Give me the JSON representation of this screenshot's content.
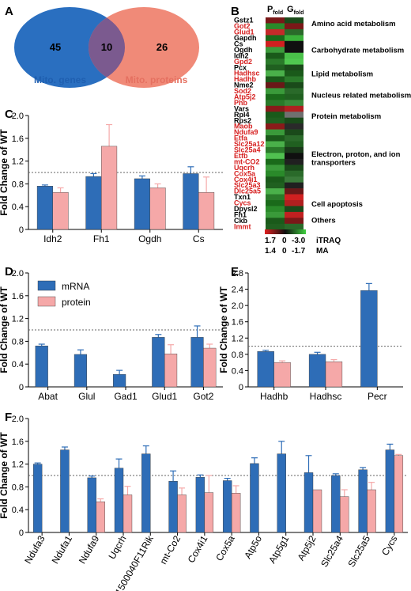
{
  "colors": {
    "mrna": "#2e6db7",
    "protein": "#f5a8a8",
    "venn_left": "#2a6fc0",
    "venn_right": "#f08a78",
    "venn_overlap": "#7b5a8f",
    "red_gene": "#d62020"
  },
  "panels": {
    "A": {
      "label": "A",
      "left_count": "45",
      "overlap_count": "10",
      "right_count": "26",
      "left_label": "Mito. genes",
      "right_label": "Mito. proteins"
    },
    "B": {
      "label": "B",
      "header_p": "P",
      "header_p_sub": "fold",
      "header_g": "G",
      "header_g_sub": "fold",
      "genes": [
        {
          "name": "Gstz1",
          "red": false,
          "p": "#7a1818",
          "g": "#1a4a1a"
        },
        {
          "name": "Got2",
          "red": true,
          "p": "#2a8a2a",
          "g": "#7a1818"
        },
        {
          "name": "Glud1",
          "red": true,
          "p": "#c42a2a",
          "g": "#2a6a2a"
        },
        {
          "name": "Gapdh",
          "red": false,
          "p": "#1a6a1a",
          "g": "#3ab03a"
        },
        {
          "name": "Cs",
          "red": false,
          "p": "#d02020",
          "g": "#101010"
        },
        {
          "name": "Ogdh",
          "red": false,
          "p": "#3a9a3a",
          "g": "#101010"
        },
        {
          "name": "Idh2",
          "red": false,
          "p": "#1a5a1a",
          "g": "#4ac04a"
        },
        {
          "name": "Gpd2",
          "red": true,
          "p": "#2a7a2a",
          "g": "#50c850"
        },
        {
          "name": "Pcx",
          "red": false,
          "p": "#206020",
          "g": "#1a4a1a"
        },
        {
          "name": "Hadhsc",
          "red": true,
          "p": "#4ab04a",
          "g": "#1a5a1a"
        },
        {
          "name": "Hadhb",
          "red": true,
          "p": "#1a5a1a",
          "g": "#2a7a2a"
        },
        {
          "name": "Nme2",
          "red": false,
          "p": "#6a1818",
          "g": "#1a4a1a"
        },
        {
          "name": "Sod2",
          "red": true,
          "p": "#3a9a3a",
          "g": "#2a6a2a"
        },
        {
          "name": "Atp5j2",
          "red": true,
          "p": "#1a6a1a",
          "g": "#206020"
        },
        {
          "name": "Phb",
          "red": true,
          "p": "#2a7a2a",
          "g": "#3a8a3a"
        },
        {
          "name": "Vars",
          "red": false,
          "p": "#8a1a1a",
          "g": "#b02020"
        },
        {
          "name": "Rpl4",
          "red": false,
          "p": "#1a5a1a",
          "g": "#707070"
        },
        {
          "name": "Rps2",
          "red": false,
          "p": "#206020",
          "g": "#1a4a1a"
        },
        {
          "name": "Maob",
          "red": true,
          "p": "#8a1a1a",
          "g": "#2a2a2a"
        },
        {
          "name": "Ndufa9",
          "red": true,
          "p": "#3a9a3a",
          "g": "#1a4a1a"
        },
        {
          "name": "Etfa",
          "red": true,
          "p": "#1a5a1a",
          "g": "#2a6a2a"
        },
        {
          "name": "Slc25a12",
          "red": true,
          "p": "#4ab04a",
          "g": "#206020"
        },
        {
          "name": "Slc25a4",
          "red": true,
          "p": "#2a7a2a",
          "g": "#1a3a1a"
        },
        {
          "name": "Etfb",
          "red": true,
          "p": "#50c050",
          "g": "#101010"
        },
        {
          "name": "mt-CO2",
          "red": true,
          "p": "#1a6a1a",
          "g": "#202020"
        },
        {
          "name": "Uqcrh",
          "red": true,
          "p": "#3a9a3a",
          "g": "#1a4a1a"
        },
        {
          "name": "Cox5a",
          "red": true,
          "p": "#2a8a2a",
          "g": "#2a6a2a"
        },
        {
          "name": "Cox4i1",
          "red": true,
          "p": "#1a5a1a",
          "g": "#3a7a3a"
        },
        {
          "name": "Slc25a3",
          "red": true,
          "p": "#206020",
          "g": "#202020"
        },
        {
          "name": "Dlc25a5",
          "red": true,
          "p": "#4ab04a",
          "g": "#6a1818"
        },
        {
          "name": "Txn1",
          "red": false,
          "p": "#2a7a2a",
          "g": "#d02020"
        },
        {
          "name": "Cycs",
          "red": true,
          "p": "#1a6a1a",
          "g": "#b02020"
        },
        {
          "name": "Dpysl2",
          "red": false,
          "p": "#2a8a2a",
          "g": "#1a4a1a"
        },
        {
          "name": "Fh1",
          "red": false,
          "p": "#3a9a3a",
          "g": "#c02020"
        },
        {
          "name": "Ckb",
          "red": false,
          "p": "#1a5a1a",
          "g": "#7a1818"
        },
        {
          "name": "Immt",
          "red": true,
          "p": "#206020",
          "g": "#2a6a2a"
        }
      ],
      "categories": [
        {
          "label": "Amino acid metabolism",
          "row": 0.7
        },
        {
          "label": "Carbohydrate metabolism",
          "row": 5.2
        },
        {
          "label": "Lipid metabolism",
          "row": 9.2
        },
        {
          "label": "Nucleus related metabolism",
          "row": 12.8
        },
        {
          "label": "Protein metabolism",
          "row": 16.4
        },
        {
          "label": "Electron, proton, and ion",
          "row": 22.8
        },
        {
          "label": "transporters",
          "row": 24.2
        },
        {
          "label": "Cell apoptosis",
          "row": 31.3
        },
        {
          "label": "Others",
          "row": 34.0
        }
      ],
      "scale_row1": {
        "v1": "1.7",
        "v2": "0",
        "v3": "-3.0",
        "name": "iTRAQ"
      },
      "scale_row2": {
        "v1": "1.4",
        "v2": "0",
        "v3": "-1.7",
        "name": "MA"
      }
    },
    "C": {
      "label": "C"
    },
    "D": {
      "label": "D"
    },
    "E": {
      "label": "E"
    },
    "F": {
      "label": "F"
    }
  },
  "legend": {
    "mrna": "mRNA",
    "protein": "protein"
  },
  "chart_data": [
    {
      "panel": "C",
      "type": "bar",
      "ylabel": "Fold Change of WT",
      "ylim": [
        0,
        2.0
      ],
      "yticks": [
        "0",
        "0.4",
        "0.8",
        "1.2",
        "1.6",
        "2.0"
      ],
      "categories": [
        "Idh2",
        "Fh1",
        "Ogdh",
        "Cs"
      ],
      "series": [
        {
          "name": "mRNA",
          "values": [
            0.76,
            0.93,
            0.89,
            0.98
          ],
          "errors": [
            0.02,
            0.05,
            0.05,
            0.12
          ]
        },
        {
          "name": "protein",
          "values": [
            0.65,
            1.46,
            0.73,
            0.65
          ],
          "errors": [
            0.08,
            0.38,
            0.07,
            0.27
          ]
        }
      ],
      "reference_line": 1.0
    },
    {
      "panel": "D",
      "type": "bar",
      "ylabel": "Fold Change of WT",
      "ylim": [
        0,
        2.0
      ],
      "yticks": [
        "0",
        "0.4",
        "0.8",
        "1.2",
        "1.6",
        "2.0"
      ],
      "categories": [
        "Abat",
        "Glul",
        "Gad1",
        "Glud1",
        "Got2"
      ],
      "series": [
        {
          "name": "mRNA",
          "values": [
            0.72,
            0.57,
            0.22,
            0.87,
            0.87
          ],
          "errors": [
            0.03,
            0.08,
            0.07,
            0.05,
            0.2
          ]
        },
        {
          "name": "protein",
          "values": [
            null,
            null,
            null,
            0.58,
            0.68
          ],
          "errors": [
            null,
            null,
            null,
            0.16,
            0.07
          ]
        }
      ],
      "reference_line": 1.0,
      "legend": "top-left"
    },
    {
      "panel": "E",
      "type": "bar",
      "ylabel": "Fold Change of WT",
      "ylim": [
        0,
        2.8
      ],
      "yticks": [
        "0",
        "0.4",
        "0.8",
        "1.2",
        "1.6",
        "2.0",
        "2.4",
        "2.8"
      ],
      "categories": [
        "Hadhb",
        "Hadhsc",
        "Pecr"
      ],
      "series": [
        {
          "name": "mRNA",
          "values": [
            0.87,
            0.8,
            2.37
          ],
          "errors": [
            0.03,
            0.05,
            0.17
          ]
        },
        {
          "name": "protein",
          "values": [
            0.6,
            0.62,
            null
          ],
          "errors": [
            0.04,
            0.05,
            null
          ]
        }
      ],
      "reference_line": 1.0
    },
    {
      "panel": "F",
      "type": "bar",
      "ylabel": "Fold Change of WT",
      "ylim": [
        0,
        2.0
      ],
      "yticks": [
        "0",
        "0.4",
        "0.8",
        "1.2",
        "1.6",
        "2.0"
      ],
      "categories": [
        "Ndufa3",
        "Ndufa1",
        "Ndufa9",
        "Uqcrh",
        "1500040F11Rik",
        "mt-Co2",
        "Cox4i1",
        "Cox5a",
        "Atp5o",
        "Atp5g1",
        "Atp5j2",
        "Slc25a4",
        "Slc25a5",
        "Cycs"
      ],
      "series": [
        {
          "name": "mRNA",
          "values": [
            1.2,
            1.45,
            0.96,
            1.13,
            1.38,
            0.9,
            0.97,
            0.91,
            1.21,
            1.38,
            1.05,
            1.0,
            1.1,
            1.45
          ],
          "errors": [
            0.02,
            0.05,
            0.03,
            0.16,
            0.14,
            0.18,
            0.04,
            0.04,
            0.1,
            0.22,
            0.3,
            0.03,
            0.04,
            0.1
          ]
        },
        {
          "name": "protein",
          "values": [
            null,
            null,
            0.54,
            0.66,
            null,
            0.66,
            0.7,
            0.69,
            null,
            null,
            0.75,
            0.63,
            0.75,
            1.35
          ],
          "errors": [
            null,
            null,
            0.05,
            0.15,
            null,
            0.12,
            0.3,
            0.13,
            null,
            null,
            0,
            0.12,
            0.13,
            0.02
          ]
        }
      ],
      "reference_line": 1.0
    }
  ]
}
